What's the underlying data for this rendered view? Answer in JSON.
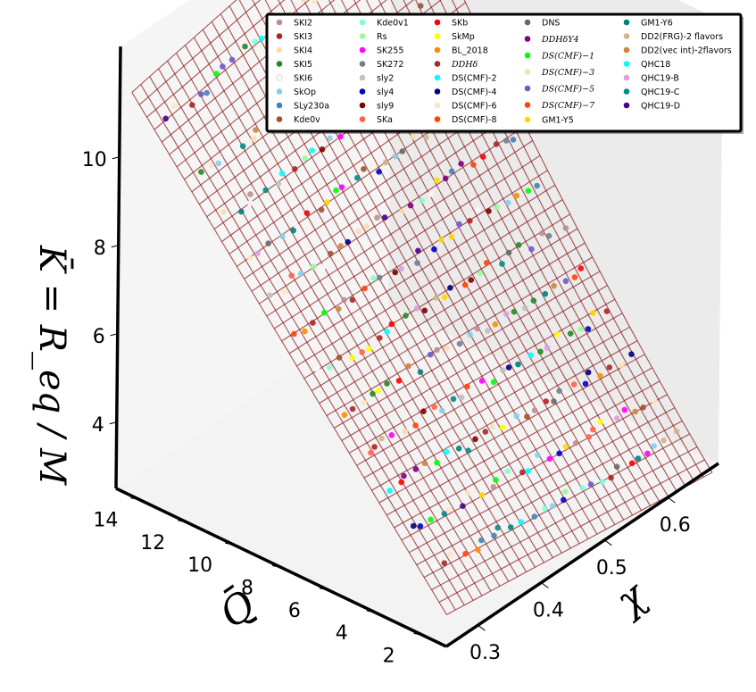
{
  "chart_data": {
    "type": "scatter",
    "subtype": "3d-scatter-with-fitted-surface",
    "title": "",
    "xlabel": "χ",
    "ylabel": "Q̄",
    "zlabel": "K̄ = R_eq / M",
    "x_ticks": [
      "0.3",
      "0.4",
      "0.5",
      "0.6"
    ],
    "y_ticks": [
      "2",
      "4",
      "6",
      "8",
      "10",
      "12",
      "14"
    ],
    "z_ticks": [
      "4",
      "6",
      "8",
      "10"
    ],
    "xlim": [
      0.25,
      0.68
    ],
    "ylim": [
      1,
      15
    ],
    "zlim": [
      2.5,
      12.5
    ],
    "surface": {
      "description": "fitted wireframe surface",
      "color": "#8b1a1a",
      "x_range": [
        0.25,
        0.67
      ],
      "y_range": [
        1,
        14.5
      ]
    },
    "legend_position": "top-right",
    "series": [
      {
        "name": "SKI2",
        "color": "#bc8f8f"
      },
      {
        "name": "SKI3",
        "color": "#b22222"
      },
      {
        "name": "SKI4",
        "color": "#ffdead"
      },
      {
        "name": "SKI5",
        "color": "#228b22"
      },
      {
        "name": "SKI6",
        "color": "#f8f8ff"
      },
      {
        "name": "SkOp",
        "color": "#87ceeb"
      },
      {
        "name": "SLy230a",
        "color": "#4682b4"
      },
      {
        "name": "Kde0v",
        "color": "#a0522d"
      },
      {
        "name": "Kde0v1",
        "color": "#7fffd4"
      },
      {
        "name": "Rs",
        "color": "#98fb98"
      },
      {
        "name": "SK255",
        "color": "#ff00ff"
      },
      {
        "name": "SK272",
        "color": "#708090"
      },
      {
        "name": "sly2",
        "color": "#c0c0c0"
      },
      {
        "name": "sly4",
        "color": "#0000cd"
      },
      {
        "name": "sly9",
        "color": "#800000"
      },
      {
        "name": "SKa",
        "color": "#ff6347"
      },
      {
        "name": "SKb",
        "color": "#ff0000"
      },
      {
        "name": "SkMp",
        "color": "#ffff00"
      },
      {
        "name": "BL_2018",
        "color": "#ff8c00"
      },
      {
        "name": "DDHδ",
        "color": "#a52a2a",
        "math": true
      },
      {
        "name": "DS(CMF)-2",
        "color": "#00ffff"
      },
      {
        "name": "DS(CMF)-4",
        "color": "#000080"
      },
      {
        "name": "DS(CMF)-6",
        "color": "#ffe4c4"
      },
      {
        "name": "DS(CMF)-8",
        "color": "#ff4500"
      },
      {
        "name": "DNS",
        "color": "#696969"
      },
      {
        "name": "DDHδY4",
        "color": "#800080",
        "math": true
      },
      {
        "name": "DS(CMF)−1",
        "color": "#00ff00",
        "math": true
      },
      {
        "name": "DS(CMF)−3",
        "color": "#f5deb3",
        "math": true
      },
      {
        "name": "DS(CMF)−5",
        "color": "#6a5acd",
        "math": true
      },
      {
        "name": "DS(CMF)−7",
        "color": "#ff4500",
        "math": true
      },
      {
        "name": "GM1-Y5",
        "color": "#ffd700"
      },
      {
        "name": "GM1-Y6",
        "color": "#008080"
      },
      {
        "name": "DD2(FRG)-2 flavors",
        "color": "#d2b48c"
      },
      {
        "name": "DD2(vec int)-2flavors",
        "color": "#cd853f"
      },
      {
        "name": "QHC18",
        "color": "#00ffff"
      },
      {
        "name": "QHC19-B",
        "color": "#dda0dd"
      },
      {
        "name": "QHC19-C",
        "color": "#008b8b"
      },
      {
        "name": "QHC19-D",
        "color": "#4b0082"
      }
    ]
  }
}
